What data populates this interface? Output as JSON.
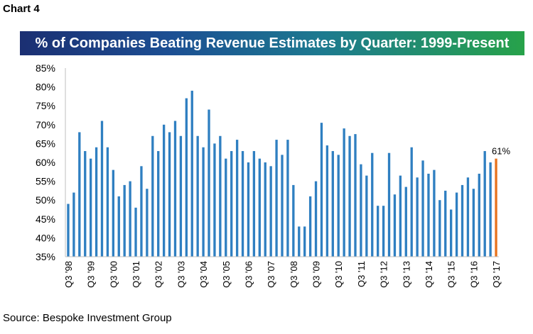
{
  "header": {
    "chart_label": "Chart 4",
    "title": "% of Companies Beating Revenue Estimates by Quarter: 1999-Present"
  },
  "footer": {
    "source": "Source: Bespoke Investment Group"
  },
  "colors": {
    "bar": "#2f7fc1",
    "highlight_bar": "#e8721c",
    "banner_start": "#1b2f72",
    "banner_end": "#27a24a"
  },
  "chart_data": {
    "type": "bar",
    "title": "% of Companies Beating Revenue Estimates by Quarter: 1999-Present",
    "xlabel": "",
    "ylabel": "",
    "ylim": [
      35,
      85
    ],
    "yticks": [
      "35%",
      "40%",
      "45%",
      "50%",
      "55%",
      "60%",
      "65%",
      "70%",
      "75%",
      "80%",
      "85%"
    ],
    "xtick_labels": [
      "Q3 '98",
      "Q3 '99",
      "Q3 '00",
      "Q3 '01",
      "Q3 '02",
      "Q3 '03",
      "Q3 '04",
      "Q3 '05",
      "Q3 '06",
      "Q3 '07",
      "Q3 '08",
      "Q3 '09",
      "Q3 '10",
      "Q3 '11",
      "Q3 '12",
      "Q3 '13",
      "Q3 '14",
      "Q3 '15",
      "Q3 '16",
      "Q3 '17"
    ],
    "grid": false,
    "annotation": "61%",
    "values": [
      49,
      52,
      68,
      63,
      61,
      64,
      71,
      64,
      58,
      51,
      54,
      55,
      48,
      59,
      53,
      67,
      63,
      70,
      68,
      71,
      67,
      77,
      79,
      67,
      64,
      74,
      65,
      67,
      61,
      63,
      66,
      63,
      60,
      63,
      61,
      60,
      59,
      66,
      62,
      66,
      54,
      43,
      43,
      51,
      55,
      70.5,
      64.5,
      63,
      62,
      69,
      67,
      67.5,
      59.5,
      56.5,
      62.5,
      48.5,
      48.5,
      62.5,
      51.5,
      56.5,
      53.5,
      64,
      56,
      60.5,
      57,
      58,
      50,
      52.5,
      47.5,
      52,
      54,
      56,
      53,
      57,
      63,
      60,
      61
    ],
    "highlight_index": 76
  }
}
